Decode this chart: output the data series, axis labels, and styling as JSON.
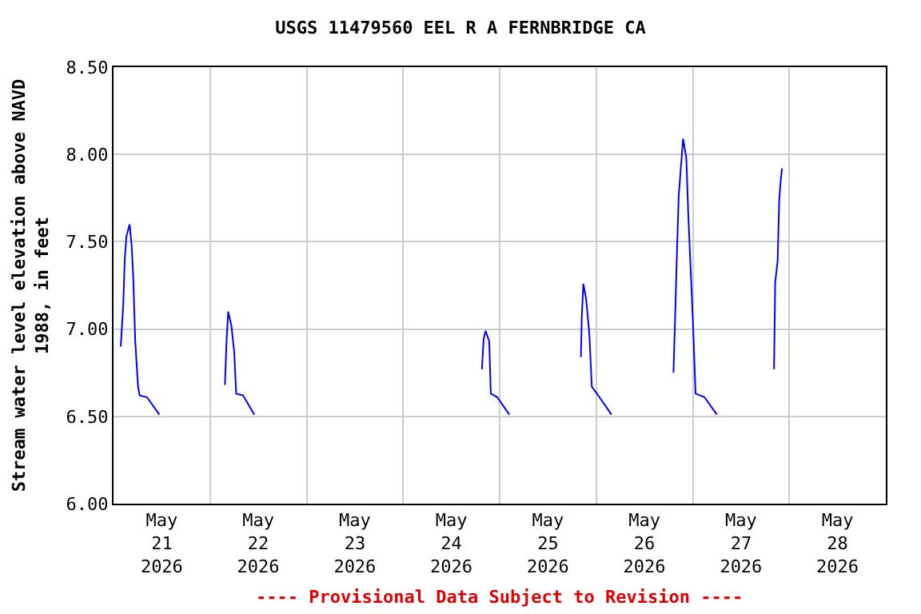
{
  "chart_data": {
    "type": "line",
    "title": "USGS 11479560 EEL R A FERNBRIDGE CA",
    "ylabel": "Stream water level elevation above NAVD\n1988, in feet",
    "annotations": [
      "---- Provisional Data Subject to Revision ----"
    ],
    "x": [
      "2026-05-21T01:48",
      "2026-05-21T02:24",
      "2026-05-21T02:48",
      "2026-05-21T03:12",
      "2026-05-21T04:00",
      "2026-05-21T04:30",
      "2026-05-21T04:54",
      "2026-05-21T05:24",
      "2026-05-21T06:06",
      "2026-05-21T06:30",
      "2026-05-21T08:18",
      "2026-05-21T11:24",
      "2026-05-21T18:00",
      "2026-05-22T03:42",
      "2026-05-22T04:06",
      "2026-05-22T04:30",
      "2026-05-22T05:18",
      "2026-05-22T06:00",
      "2026-05-22T06:30",
      "2026-05-22T08:12",
      "2026-05-22T11:00",
      "2026-05-23T12:00",
      "2026-05-24T19:36",
      "2026-05-24T20:00",
      "2026-05-24T20:30",
      "2026-05-24T21:24",
      "2026-05-24T21:48",
      "2026-05-24T23:24",
      "2026-05-25T02:24",
      "2026-05-25T12:00",
      "2026-05-25T20:12",
      "2026-05-25T20:24",
      "2026-05-25T20:48",
      "2026-05-25T21:30",
      "2026-05-25T22:18",
      "2026-05-25T22:54",
      "2026-05-26T00:48",
      "2026-05-26T03:48",
      "2026-05-26T12:00",
      "2026-05-26T19:12",
      "2026-05-26T19:36",
      "2026-05-26T20:06",
      "2026-05-26T20:30",
      "2026-05-26T21:36",
      "2026-05-26T22:24",
      "2026-05-26T22:54",
      "2026-05-26T23:36",
      "2026-05-27T00:06",
      "2026-05-27T00:42",
      "2026-05-27T02:54",
      "2026-05-27T06:00",
      "2026-05-27T12:00",
      "2026-05-27T20:12",
      "2026-05-27T20:30",
      "2026-05-27T21:06",
      "2026-05-27T21:30",
      "2026-05-27T21:54",
      "2026-05-27T22:12"
    ],
    "series": [
      {
        "color": "#0000ff",
        "values": [
          6.9,
          7.13,
          7.4,
          7.53,
          7.6,
          7.48,
          7.3,
          6.93,
          6.67,
          6.62,
          6.61,
          6.51,
          null,
          6.68,
          6.93,
          7.1,
          7.02,
          6.87,
          6.63,
          6.62,
          6.51,
          null,
          6.77,
          6.94,
          6.99,
          6.93,
          6.63,
          6.61,
          6.51,
          null,
          6.84,
          7.06,
          7.26,
          7.17,
          6.97,
          6.67,
          6.61,
          6.51,
          null,
          6.75,
          7.05,
          7.46,
          7.76,
          8.09,
          7.98,
          7.65,
          7.28,
          7.01,
          6.63,
          6.61,
          6.51,
          null,
          6.77,
          7.27,
          7.39,
          7.74,
          7.86,
          7.92
        ]
      }
    ],
    "xlim": [
      "2026-05-21T00:00",
      "2026-05-29T00:00"
    ],
    "xticks": [
      {
        "value": "2026-05-21T12:00",
        "label": "May\n21\n2026"
      },
      {
        "value": "2026-05-22T12:00",
        "label": "May\n22\n2026"
      },
      {
        "value": "2026-05-23T12:00",
        "label": "May\n23\n2026"
      },
      {
        "value": "2026-05-24T12:00",
        "label": "May\n24\n2026"
      },
      {
        "value": "2026-05-25T12:00",
        "label": "May\n25\n2026"
      },
      {
        "value": "2026-05-26T12:00",
        "label": "May\n26\n2026"
      },
      {
        "value": "2026-05-27T12:00",
        "label": "May\n27\n2026"
      },
      {
        "value": "2026-05-28T12:00",
        "label": "May\n28\n2026"
      },
      {
        "value": "2026-05-22T00:00",
        "label": null
      },
      {
        "value": "2026-05-23T00:00",
        "label": null
      },
      {
        "value": "2026-05-24T00:00",
        "label": null
      },
      {
        "value": "2026-05-25T00:00",
        "label": null
      },
      {
        "value": "2026-05-26T00:00",
        "label": null
      },
      {
        "value": "2026-05-27T00:00",
        "label": null
      },
      {
        "value": "2026-05-28T00:00",
        "label": null
      }
    ],
    "ylim": [
      6,
      8.5
    ],
    "yticks": [
      {
        "value": 6,
        "label": "6.00"
      },
      {
        "value": 6.5,
        "label": "6.50"
      },
      {
        "value": 7,
        "label": "7.00"
      },
      {
        "value": 7.5,
        "label": "7.50"
      },
      {
        "value": 8,
        "label": "8.00"
      },
      {
        "value": 8.5,
        "label": "8.50"
      }
    ],
    "grid": true
  }
}
